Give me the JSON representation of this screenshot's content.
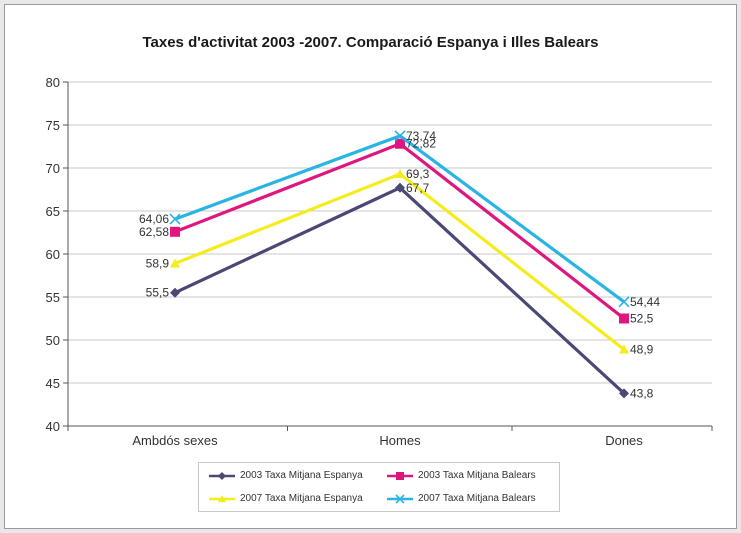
{
  "chart_data": {
    "type": "line",
    "title": "Taxes d'activitat 2003 -2007. Comparació Espanya i Illes Balears",
    "categories": [
      "Ambdós sexes",
      "Homes",
      "Dones"
    ],
    "ylim": [
      40,
      80
    ],
    "yticks": [
      40,
      45,
      50,
      55,
      60,
      65,
      70,
      75,
      80
    ],
    "grid": true,
    "legend": "bottom",
    "series": [
      {
        "name": "2003 Taxa Mitjana Espanya",
        "values": [
          55.5,
          67.7,
          43.8
        ],
        "labels": [
          "55,5",
          "67,7",
          "43,8"
        ],
        "color": "#4a4875",
        "marker": "diamond"
      },
      {
        "name": "2003 Taxa Mitjana Balears",
        "values": [
          62.58,
          72.82,
          52.5
        ],
        "labels": [
          "62,58",
          "72,82",
          "52,5"
        ],
        "color": "#e0167f",
        "marker": "square"
      },
      {
        "name": "2007 Taxa Mitjana Espanya",
        "values": [
          58.9,
          69.3,
          48.9
        ],
        "labels": [
          "58,9",
          "69,3",
          "48,9"
        ],
        "color": "#f5ec1c",
        "marker": "triangle"
      },
      {
        "name": "2007 Taxa Mitjana Balears",
        "values": [
          64.06,
          73.74,
          54.44
        ],
        "labels": [
          "64,06",
          "73,74",
          "54,44"
        ],
        "color": "#2ab4e4",
        "marker": "x"
      }
    ]
  }
}
